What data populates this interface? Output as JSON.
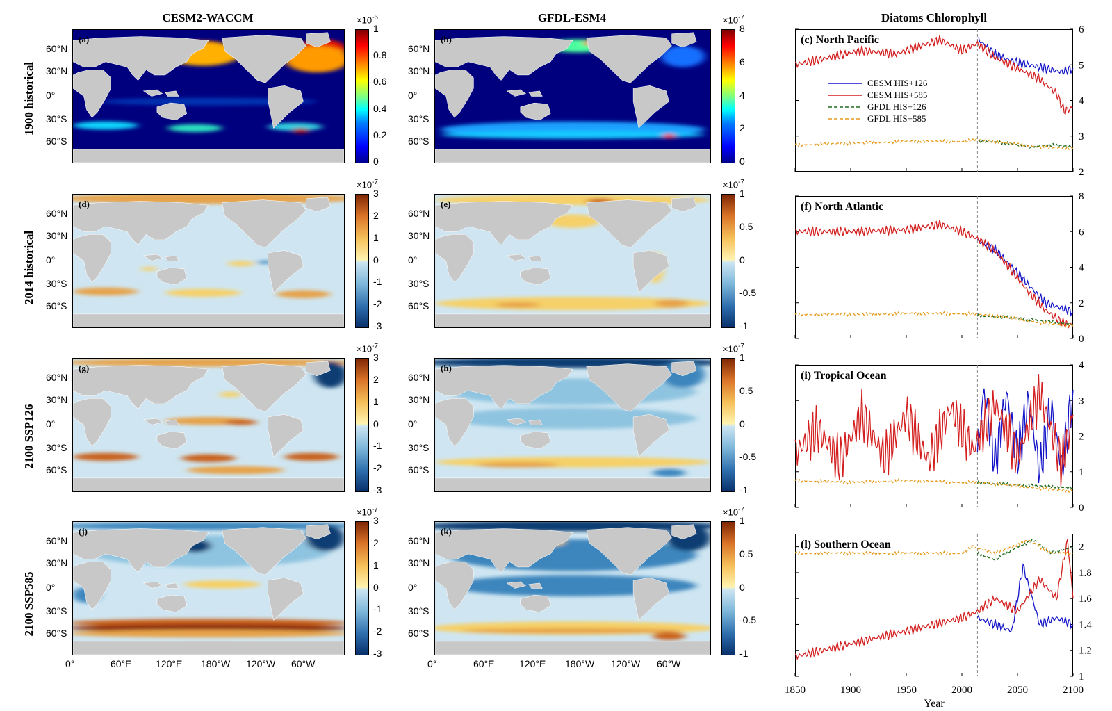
{
  "column_titles": [
    "CESM2-WACCM",
    "GFDL-ESM4",
    "Diatoms Chlorophyll"
  ],
  "row_labels": [
    "1900 historical",
    "2014 historical",
    "2100 SSP126",
    "2100 SSP585"
  ],
  "map_panels": [
    {
      "letter": "(a)",
      "model": "CESM2-WACCM",
      "row": "1900 historical",
      "colormap": "jet",
      "colorbar": {
        "exponent": "×10",
        "exponent_sup": "-6",
        "ticks": [
          "1",
          "0.8",
          "0.6",
          "0.4",
          "0.2",
          "0"
        ]
      }
    },
    {
      "letter": "(b)",
      "model": "GFDL-ESM4",
      "row": "1900 historical",
      "colormap": "jet",
      "colorbar": {
        "exponent": "×10",
        "exponent_sup": "-7",
        "ticks": [
          "8",
          "6",
          "4",
          "2",
          "0"
        ]
      }
    },
    {
      "letter": "(d)",
      "model": "CESM2-WACCM",
      "row": "2014 historical",
      "colormap": "diverging",
      "colorbar": {
        "exponent": "×10",
        "exponent_sup": "-7",
        "ticks": [
          "3",
          "2",
          "1",
          "0",
          "-1",
          "-2",
          "-3"
        ]
      }
    },
    {
      "letter": "(e)",
      "model": "GFDL-ESM4",
      "row": "2014 historical",
      "colormap": "diverging",
      "colorbar": {
        "exponent": "×10",
        "exponent_sup": "-7",
        "ticks": [
          "1",
          "0.5",
          "0",
          "-0.5",
          "-1"
        ]
      }
    },
    {
      "letter": "(g)",
      "model": "CESM2-WACCM",
      "row": "2100 SSP126",
      "colormap": "diverging",
      "colorbar": {
        "exponent": "×10",
        "exponent_sup": "-7",
        "ticks": [
          "3",
          "2",
          "1",
          "0",
          "-1",
          "-2",
          "-3"
        ]
      }
    },
    {
      "letter": "(h)",
      "model": "GFDL-ESM4",
      "row": "2100 SSP126",
      "colormap": "diverging",
      "colorbar": {
        "exponent": "×10",
        "exponent_sup": "-7",
        "ticks": [
          "1",
          "0.5",
          "0",
          "-0.5",
          "-1"
        ]
      }
    },
    {
      "letter": "(j)",
      "model": "CESM2-WACCM",
      "row": "2100 SSP585",
      "colormap": "diverging",
      "colorbar": {
        "exponent": "×10",
        "exponent_sup": "-7",
        "ticks": [
          "3",
          "2",
          "1",
          "0",
          "-1",
          "-2",
          "-3"
        ]
      }
    },
    {
      "letter": "(k)",
      "model": "GFDL-ESM4",
      "row": "2100 SSP585",
      "colormap": "diverging",
      "colorbar": {
        "exponent": "×10",
        "exponent_sup": "-7",
        "ticks": [
          "1",
          "0.5",
          "0",
          "-0.5",
          "-1"
        ]
      }
    }
  ],
  "lat_labels": [
    "60°N",
    "30°N",
    "0°",
    "30°S",
    "60°S"
  ],
  "lon_labels": [
    "0°",
    "60°E",
    "120°E",
    "180°W",
    "120°W",
    "60°W"
  ],
  "colors": {
    "cesm_126": "#1515c8",
    "cesm_585": "#d41f1f",
    "gfdl_126": "#1e6b1e",
    "gfdl_585": "#e59a1c",
    "land": "#c8c8c8",
    "ocean_low": "#00008f",
    "divider": "#888888"
  },
  "chart_data": [
    {
      "type": "line",
      "letter": "(c)",
      "region": "North Pacific",
      "xlim": [
        1850,
        2100
      ],
      "ylim": [
        2,
        6
      ],
      "yticks": [
        2,
        3,
        4,
        5,
        6
      ],
      "xticks": [
        1850,
        1900,
        1950,
        2000,
        2050,
        2100
      ],
      "xlabel": "",
      "divider_year": 2014,
      "legend": {
        "placement": "upper-left",
        "entries": [
          "CESM HIS+126",
          "CESM HIS+585",
          "GFDL HIS+126",
          "GFDL HIS+585"
        ]
      },
      "series": [
        {
          "name": "CESM HIS+126",
          "x": [
            2015,
            2030,
            2045,
            2060,
            2075,
            2090,
            2100
          ],
          "y": [
            5.7,
            5.3,
            5.1,
            5.0,
            4.9,
            4.8,
            4.9
          ]
        },
        {
          "name": "CESM HIS+585",
          "x": [
            1850,
            1880,
            1910,
            1940,
            1970,
            1980,
            2000,
            2014,
            2030,
            2050,
            2070,
            2085,
            2092,
            2100
          ],
          "y": [
            5.0,
            5.2,
            5.4,
            5.3,
            5.6,
            5.7,
            5.4,
            5.6,
            5.2,
            4.9,
            4.6,
            4.2,
            3.7,
            3.8
          ]
        },
        {
          "name": "GFDL HIS+126",
          "x": [
            2015,
            2040,
            2060,
            2080,
            2100
          ],
          "y": [
            2.85,
            2.8,
            2.7,
            2.75,
            2.7
          ]
        },
        {
          "name": "GFDL HIS+585",
          "x": [
            1850,
            1900,
            1950,
            2000,
            2014,
            2040,
            2070,
            2100
          ],
          "y": [
            2.75,
            2.8,
            2.85,
            2.85,
            2.9,
            2.8,
            2.7,
            2.65
          ]
        }
      ]
    },
    {
      "type": "line",
      "letter": "(f)",
      "region": "North Atlantic",
      "xlim": [
        1850,
        2100
      ],
      "ylim": [
        0,
        8
      ],
      "yticks": [
        0,
        2,
        4,
        6,
        8
      ],
      "xticks": [
        1850,
        1900,
        1950,
        2000,
        2050,
        2100
      ],
      "xlabel": "",
      "divider_year": 2014,
      "series": [
        {
          "name": "CESM HIS+126",
          "x": [
            2014,
            2030,
            2045,
            2060,
            2075,
            2090,
            2100
          ],
          "y": [
            5.5,
            5.0,
            4.0,
            3.0,
            2.0,
            1.7,
            1.5
          ]
        },
        {
          "name": "CESM HIS+585",
          "x": [
            1850,
            1900,
            1950,
            1980,
            2000,
            2014,
            2030,
            2045,
            2060,
            2075,
            2090,
            2100
          ],
          "y": [
            6.0,
            6.0,
            6.1,
            6.4,
            6.0,
            5.6,
            4.9,
            3.8,
            2.6,
            1.6,
            0.9,
            0.7
          ]
        },
        {
          "name": "GFDL HIS+126",
          "x": [
            2014,
            2040,
            2070,
            2100
          ],
          "y": [
            1.3,
            1.2,
            1.0,
            0.8
          ]
        },
        {
          "name": "GFDL HIS+585",
          "x": [
            1850,
            1900,
            1950,
            2000,
            2014,
            2040,
            2070,
            2100
          ],
          "y": [
            1.35,
            1.35,
            1.4,
            1.4,
            1.35,
            1.2,
            0.9,
            0.7
          ]
        }
      ]
    },
    {
      "type": "line",
      "letter": "(i)",
      "region": "Tropical Ocean",
      "xlim": [
        1850,
        2100
      ],
      "ylim": [
        0,
        4
      ],
      "yticks": [
        0,
        1,
        2,
        3,
        4
      ],
      "xticks": [
        1850,
        1900,
        1950,
        2000,
        2050,
        2100
      ],
      "xlabel": "",
      "divider_year": 2014,
      "series": [
        {
          "name": "CESM HIS+126",
          "x": [
            2014,
            2020,
            2030,
            2040,
            2050,
            2060,
            2070,
            2080,
            2090,
            2100
          ],
          "y": [
            1.5,
            3.3,
            1.2,
            3.2,
            1.4,
            3.0,
            1.0,
            2.8,
            1.1,
            3.3
          ]
        },
        {
          "name": "CESM HIS+585",
          "x": [
            1850,
            1870,
            1890,
            1910,
            1930,
            1950,
            1970,
            1990,
            2010,
            2030,
            2050,
            2070,
            2090,
            2100
          ],
          "y": [
            1.5,
            2.2,
            1.3,
            2.6,
            1.4,
            2.6,
            1.3,
            2.8,
            1.6,
            2.9,
            1.4,
            3.2,
            1.2,
            2.6
          ]
        },
        {
          "name": "GFDL HIS+126",
          "x": [
            2014,
            2040,
            2070,
            2100
          ],
          "y": [
            0.7,
            0.65,
            0.6,
            0.55
          ]
        },
        {
          "name": "GFDL HIS+585",
          "x": [
            1850,
            1900,
            1950,
            2000,
            2014,
            2050,
            2100
          ],
          "y": [
            0.75,
            0.7,
            0.75,
            0.7,
            0.7,
            0.6,
            0.45
          ]
        }
      ]
    },
    {
      "type": "line",
      "letter": "(l)",
      "region": "Southern Ocean",
      "xlim": [
        1850,
        2100
      ],
      "ylim": [
        1,
        2.1
      ],
      "yticks": [
        1,
        1.2,
        1.4,
        1.6,
        1.8,
        2
      ],
      "xticks": [
        1850,
        1900,
        1950,
        2000,
        2050,
        2100
      ],
      "xlabel": "Year",
      "divider_year": 2014,
      "series": [
        {
          "name": "CESM HIS+126",
          "x": [
            2014,
            2030,
            2045,
            2055,
            2070,
            2085,
            2100
          ],
          "y": [
            1.45,
            1.4,
            1.35,
            1.85,
            1.4,
            1.45,
            1.4
          ]
        },
        {
          "name": "CESM HIS+585",
          "x": [
            1850,
            1875,
            1900,
            1925,
            1950,
            1975,
            2000,
            2014,
            2030,
            2050,
            2070,
            2085,
            2095,
            2100
          ],
          "y": [
            1.15,
            1.2,
            1.25,
            1.3,
            1.35,
            1.4,
            1.45,
            1.5,
            1.6,
            1.5,
            1.75,
            1.6,
            2.05,
            1.6
          ]
        },
        {
          "name": "GFDL HIS+126",
          "x": [
            2014,
            2030,
            2050,
            2065,
            2080,
            2100
          ],
          "y": [
            1.95,
            1.9,
            2.0,
            2.05,
            1.95,
            2.0
          ]
        },
        {
          "name": "GFDL HIS+585",
          "x": [
            1850,
            1900,
            1950,
            2000,
            2010,
            2030,
            2060,
            2080,
            2100
          ],
          "y": [
            1.95,
            1.95,
            1.95,
            1.95,
            2.0,
            1.95,
            2.05,
            1.95,
            1.95
          ]
        }
      ]
    }
  ]
}
